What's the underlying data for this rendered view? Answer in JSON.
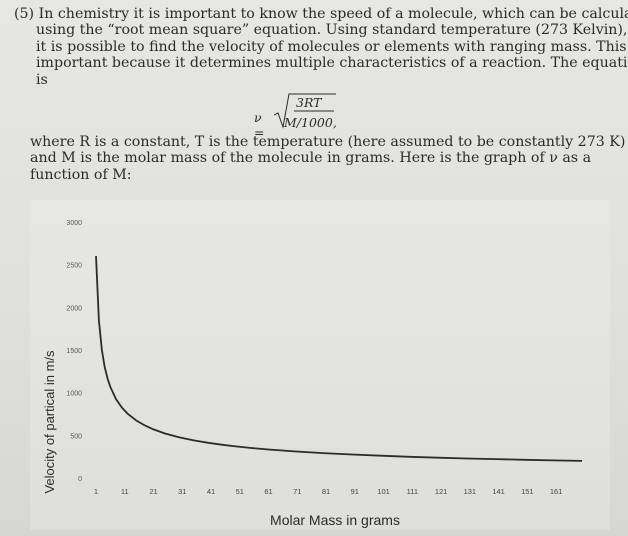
{
  "problem": {
    "lines": [
      "(5) In chemistry it is important to know the speed of a molecule, which can be calculated",
      "using the “root mean square” equation. Using standard temperature (273 Kelvin),",
      "it is possible to find the velocity of molecules or elements with ranging mass. This is",
      "important because it determines multiple characteristics of a reaction. The equation",
      "is"
    ]
  },
  "formula": {
    "lhs": "ν =",
    "numerator": "3RT",
    "denominator": "M/1000",
    "trailing": ","
  },
  "explanation": {
    "lines": [
      "where R is a constant, T is the temperature (here assumed to be constantly 273 K)",
      "and M is the molar mass of the molecule in grams.  Here is the graph of ν as a",
      "function of M:"
    ]
  },
  "chart_data": {
    "type": "line",
    "title": "",
    "xlabel": "Molar Mass in grams",
    "ylabel": "Velocity of partical in m/s",
    "x_ticks": [
      "1",
      "11",
      "21",
      "31",
      "41",
      "51",
      "61",
      "71",
      "81",
      "91",
      "101",
      "111",
      "121",
      "131",
      "141",
      "151",
      "161"
    ],
    "y_ticks": [
      "0",
      "500",
      "1000",
      "1500",
      "2000",
      "2500",
      "3000"
    ],
    "xlim": [
      1,
      170
    ],
    "ylim": [
      0,
      3000
    ],
    "grid": false,
    "legend": "none",
    "line_color": "#2b2b2b",
    "series": [
      {
        "x": [
          1,
          2,
          3,
          4,
          5,
          6,
          8,
          10,
          12,
          15,
          18,
          21,
          25,
          30,
          35,
          40,
          45,
          50,
          55,
          61,
          70,
          80,
          90,
          100,
          110,
          120,
          130,
          140,
          150,
          160,
          170
        ],
        "values": [
          2600,
          1845,
          1507,
          1305,
          1167,
          1065,
          922,
          825,
          753,
          674,
          615,
          569,
          522,
          476,
          441,
          413,
          389,
          369,
          352,
          334,
          312,
          292,
          275,
          261,
          249,
          238,
          229,
          221,
          213,
          206,
          200
        ]
      }
    ]
  }
}
